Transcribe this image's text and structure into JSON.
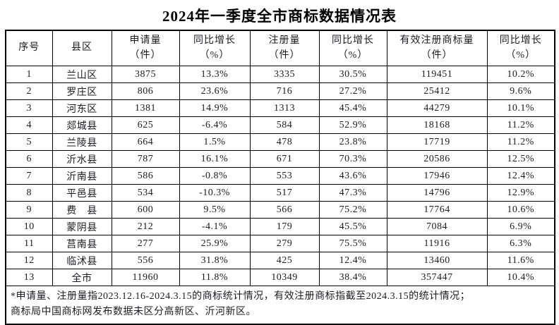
{
  "title": "2024年一季度全市商标数据情况表",
  "table": {
    "headers": [
      {
        "title": "序号",
        "unit": ""
      },
      {
        "title": "县区",
        "unit": ""
      },
      {
        "title": "申请量",
        "unit": "（件）"
      },
      {
        "title": "同比增长",
        "unit": "（%）"
      },
      {
        "title": "注册量",
        "unit": "（件）"
      },
      {
        "title": "同比增长",
        "unit": "（%）"
      },
      {
        "title": "有效注册商标量",
        "unit": "（件）"
      },
      {
        "title": "同比增长",
        "unit": "（%）"
      }
    ],
    "rows": [
      [
        "1",
        "兰山区",
        "3875",
        "13.3%",
        "3335",
        "30.5%",
        "119451",
        "10.2%"
      ],
      [
        "2",
        "罗庄区",
        "806",
        "23.6%",
        "716",
        "27.2%",
        "25412",
        "9.6%"
      ],
      [
        "3",
        "河东区",
        "1381",
        "14.9%",
        "1313",
        "45.4%",
        "44279",
        "10.1%"
      ],
      [
        "4",
        "郯城县",
        "625",
        "-6.4%",
        "584",
        "52.9%",
        "18168",
        "11.2%"
      ],
      [
        "5",
        "兰陵县",
        "664",
        "1.5%",
        "478",
        "23.8%",
        "17719",
        "11.2%"
      ],
      [
        "6",
        "沂水县",
        "787",
        "16.1%",
        "671",
        "70.3%",
        "20586",
        "12.5%"
      ],
      [
        "7",
        "沂南县",
        "586",
        "-0.8%",
        "553",
        "43.6%",
        "17946",
        "12.4%"
      ],
      [
        "8",
        "平邑县",
        "534",
        "-10.3%",
        "517",
        "47.3%",
        "14796",
        "12.9%"
      ],
      [
        "9",
        "费　县",
        "600",
        "9.5%",
        "566",
        "75.2%",
        "17764",
        "10.6%"
      ],
      [
        "10",
        "蒙阴县",
        "212",
        "-4.1%",
        "179",
        "45.5%",
        "7084",
        "6.9%"
      ],
      [
        "11",
        "莒南县",
        "277",
        "25.9%",
        "279",
        "75.5%",
        "11916",
        "6.3%"
      ],
      [
        "12",
        "临沭县",
        "556",
        "31.8%",
        "425",
        "12.4%",
        "13460",
        "11.6%"
      ],
      [
        "13",
        "全市",
        "11960",
        "11.8%",
        "10349",
        "38.4%",
        "357447",
        "10.4%"
      ]
    ]
  },
  "footnote": {
    "line1": "*申请量、注册量指2023.12.16-2024.3.15的商标统计情况，有效注册商标指截至2024.3.15的统计情况；",
    "line2": "商标局中国商标网发布数据未区分高新区、沂河新区。"
  },
  "colors": {
    "background": "#ffffff",
    "border": "#000000",
    "text": "#1b1b22"
  }
}
